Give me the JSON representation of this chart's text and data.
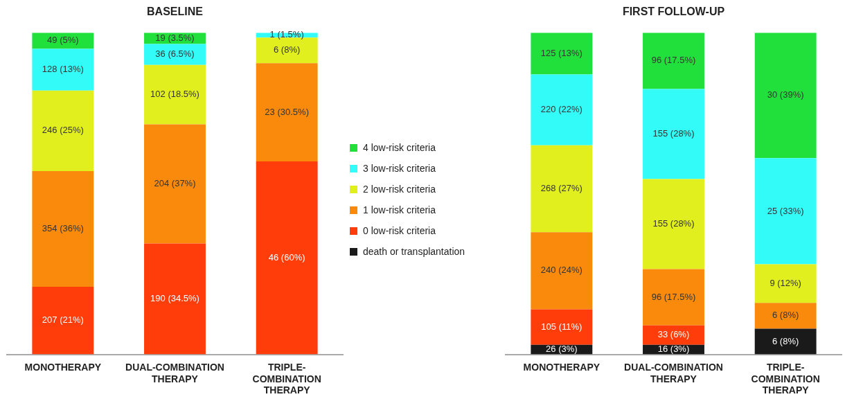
{
  "chart_data": [
    {
      "type": "bar",
      "title": "BASELINE",
      "stacked": true,
      "ylim": [
        0,
        100
      ],
      "tick_labels": "x",
      "legend": false,
      "categories": [
        "MONOTHERAPY",
        "DUAL-COMBINATION THERAPY",
        "TRIPLE-COMBINATION THERAPY"
      ],
      "series": [
        {
          "color": "#ff3d0a",
          "values": [
            21,
            34.5,
            60
          ],
          "value_labels": [
            "207 (21%)",
            "190 (34.5%)",
            "46 (60%)"
          ]
        },
        {
          "color": "#f98a0c",
          "values": [
            36,
            37,
            30.5
          ],
          "value_labels": [
            "354 (36%)",
            "204 (37%)",
            "23 (30.5%)"
          ]
        },
        {
          "color": "#e2ef1e",
          "values": [
            25,
            18.5,
            8
          ],
          "value_labels": [
            "246 (25%)",
            "102 (18.5%)",
            "6 (8%)"
          ]
        },
        {
          "color": "#33fbf8",
          "values": [
            13,
            6.5,
            1.5
          ],
          "value_labels": [
            "128 (13%)",
            "36 (6.5%)",
            "1 (1.5%)"
          ]
        },
        {
          "color": "#22e03c",
          "values": [
            5,
            3.5,
            0
          ],
          "value_labels": [
            "49 (5%)",
            "19 (3.5%)",
            null
          ]
        }
      ]
    },
    {
      "type": "bar",
      "title": "FIRST FOLLOW-UP",
      "stacked": true,
      "ylim": [
        0,
        100
      ],
      "tick_labels": "x",
      "legend": "left",
      "categories": [
        "MONOTHERAPY",
        "DUAL-COMBINATION THERAPY",
        "TRIPLE-COMBINATION THERAPY"
      ],
      "series": [
        {
          "name": "death or transplantation",
          "color": "#1a1a1a",
          "values": [
            3,
            3,
            8
          ],
          "value_labels": [
            "26 (3%)",
            "16 (3%)",
            "6 (8%)"
          ]
        },
        {
          "name": "0 low-risk criteria",
          "color": "#ff3d0a",
          "values": [
            11,
            6,
            0
          ],
          "value_labels": [
            "105 (11%)",
            "33 (6%)",
            null
          ]
        },
        {
          "name": "1 low-risk criteria",
          "color": "#f98a0c",
          "values": [
            24,
            17.5,
            8
          ],
          "value_labels": [
            "240 (24%)",
            "96 (17.5%)",
            "6 (8%)"
          ]
        },
        {
          "name": "2 low-risk criteria",
          "color": "#e2ef1e",
          "values": [
            27,
            28,
            12
          ],
          "value_labels": [
            "268 (27%)",
            "155 (28%)",
            "9 (12%)"
          ]
        },
        {
          "name": "3 low-risk criteria",
          "color": "#33fbf8",
          "values": [
            22,
            28,
            33
          ],
          "value_labels": [
            "220 (22%)",
            "155 (28%)",
            "25 (33%)"
          ]
        },
        {
          "name": "4 low-risk criteria",
          "color": "#22e03c",
          "values": [
            13,
            17.5,
            39
          ],
          "value_labels": [
            "125 (13%)",
            "96 (17.5%)",
            "30 (39%)"
          ]
        }
      ]
    }
  ]
}
